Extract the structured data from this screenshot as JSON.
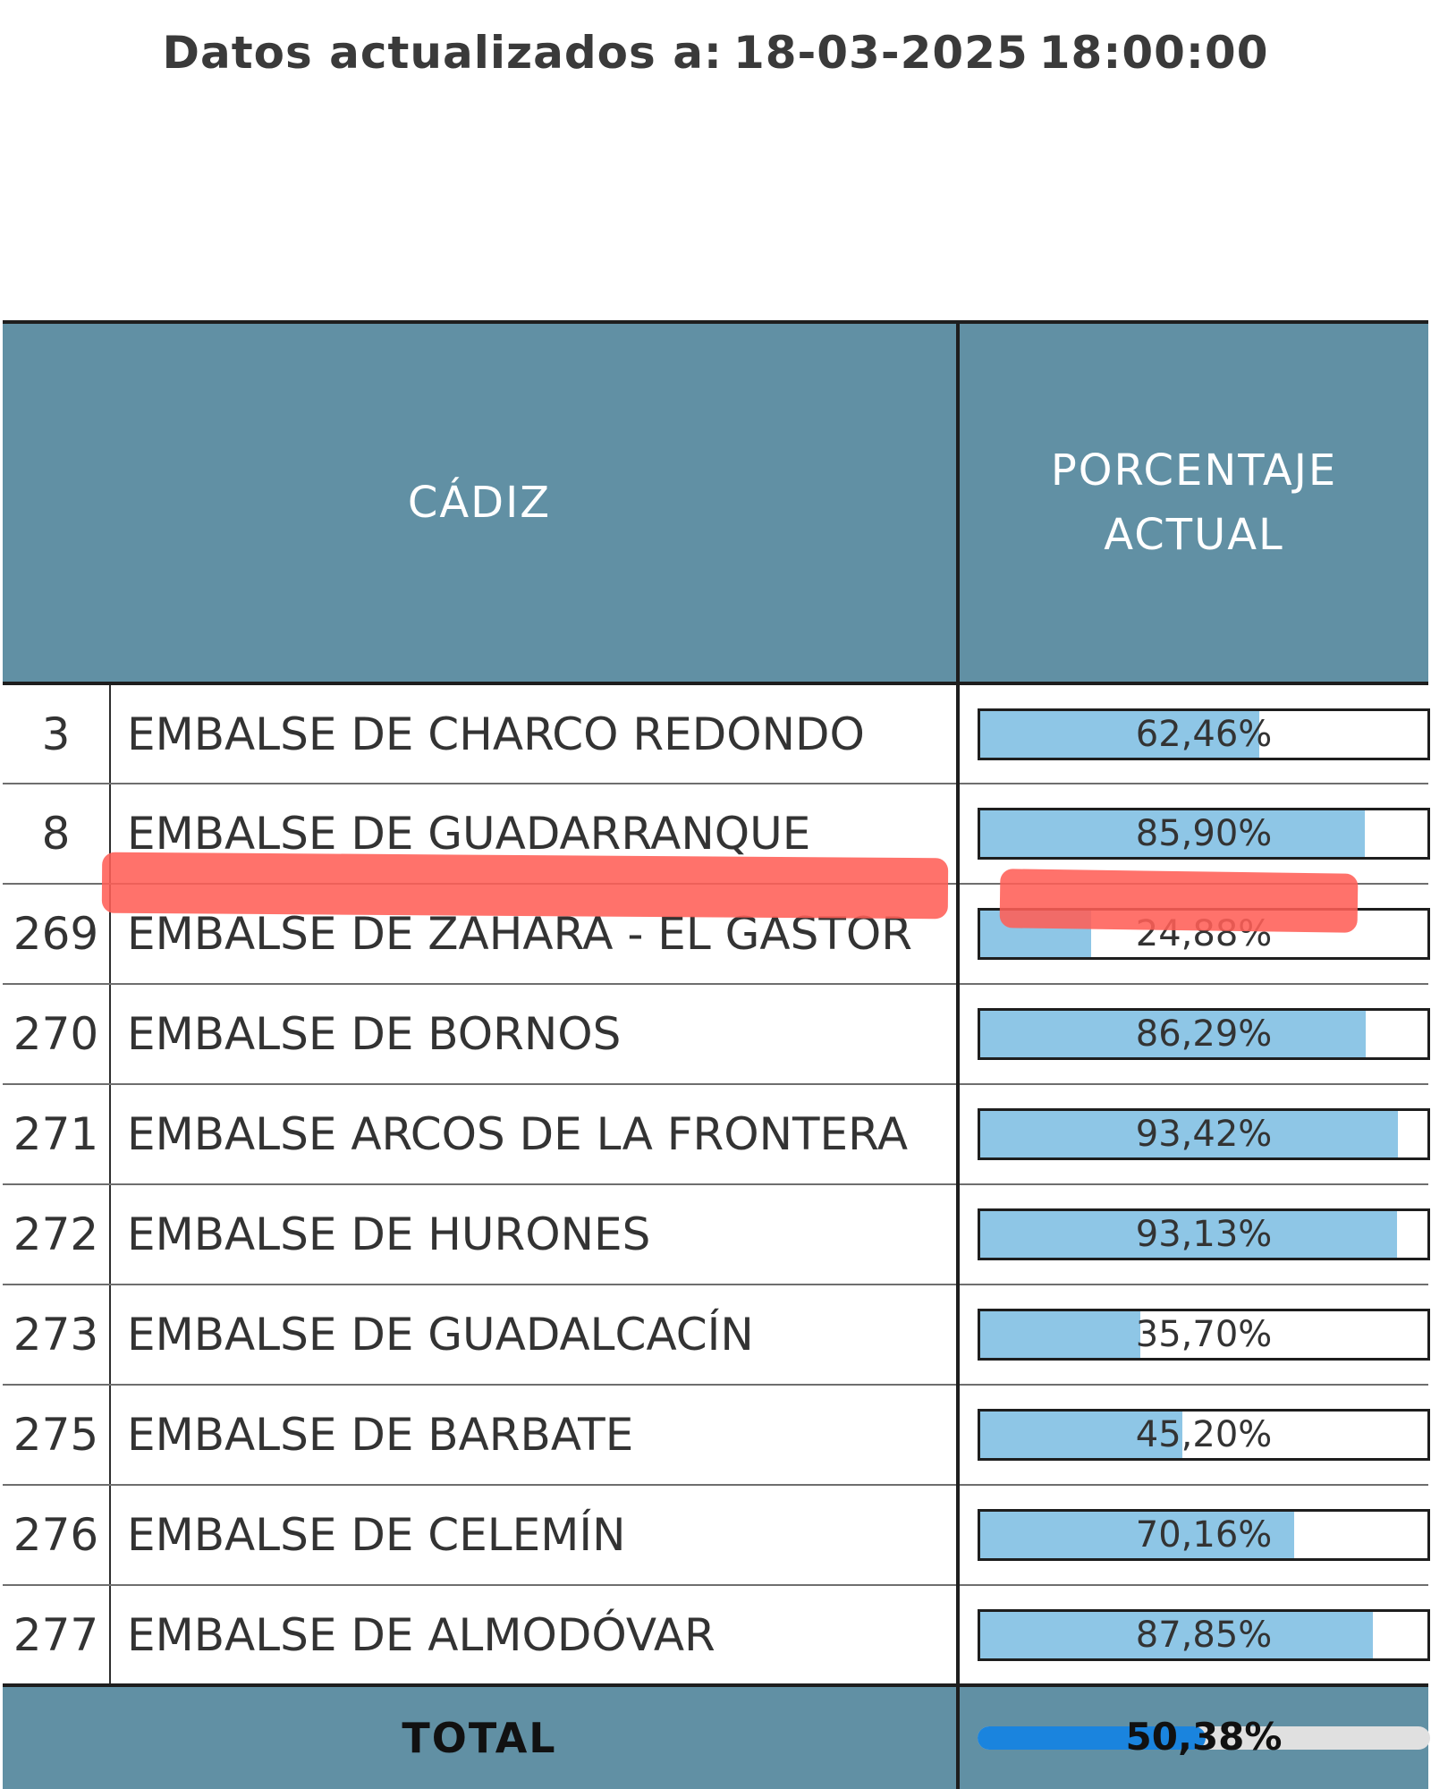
{
  "updated": {
    "label": "Datos actualizados a:",
    "date": "18-03-2025",
    "time": "18:00:00"
  },
  "table": {
    "region_header": "CÁDIZ",
    "percent_header_line1": "PORCENTAJE",
    "percent_header_line2": "ACTUAL",
    "rows": [
      {
        "id": "3",
        "name": "EMBALSE DE CHARCO REDONDO",
        "percent": "62,46%",
        "fraction": 0.6246
      },
      {
        "id": "8",
        "name": "EMBALSE DE GUADARRANQUE",
        "percent": "85,90%",
        "fraction": 0.859
      },
      {
        "id": "269",
        "name": "EMBALSE DE ZAHARA - EL GASTOR",
        "percent": "24,88%",
        "fraction": 0.2488
      },
      {
        "id": "270",
        "name": "EMBALSE DE BORNOS",
        "percent": "86,29%",
        "fraction": 0.8629
      },
      {
        "id": "271",
        "name": "EMBALSE ARCOS DE LA FRONTERA",
        "percent": "93,42%",
        "fraction": 0.9342
      },
      {
        "id": "272",
        "name": "EMBALSE DE HURONES",
        "percent": "93,13%",
        "fraction": 0.9313
      },
      {
        "id": "273",
        "name": "EMBALSE DE GUADALCACÍN",
        "percent": "35,70%",
        "fraction": 0.357
      },
      {
        "id": "275",
        "name": "EMBALSE DE BARBATE",
        "percent": "45,20%",
        "fraction": 0.452
      },
      {
        "id": "276",
        "name": "EMBALSE DE CELEMÍN",
        "percent": "70,16%",
        "fraction": 0.7016
      },
      {
        "id": "277",
        "name": "EMBALSE DE ALMODÓVAR",
        "percent": "87,85%",
        "fraction": 0.8785
      }
    ],
    "total_label": "TOTAL",
    "total_percent": "50,38%",
    "total_fraction": 0.5038
  },
  "colors": {
    "header_bg": "#6190a4",
    "bar_fill": "#8ec6e6",
    "total_bar_fill": "#1a84de",
    "highlight": "#ff5f57"
  }
}
